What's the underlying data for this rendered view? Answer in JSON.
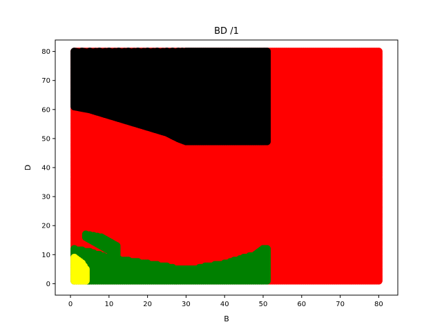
{
  "chart_data": {
    "type": "scatter",
    "title": "BD /1",
    "xlabel": "B",
    "ylabel": "D",
    "xlim": [
      -3.95,
      84.95
    ],
    "ylim": [
      -3.95,
      83.95
    ],
    "xticks": [
      0,
      10,
      20,
      30,
      40,
      50,
      60,
      70,
      80
    ],
    "yticks": [
      0,
      10,
      20,
      30,
      40,
      50,
      60,
      70,
      80
    ],
    "grid": false,
    "legend": "none",
    "marker_step": 0.5,
    "series": [
      {
        "color": "#ff0000",
        "regions": [
          {
            "x": [
              1,
              80
            ],
            "y": [
              1,
              80
            ]
          }
        ]
      },
      {
        "color": "#000000",
        "regions": [
          {
            "x": [
              1,
              51
            ],
            "y_min_boundary": [
              [
                1,
                61
              ],
              [
                5,
                60
              ],
              [
                10,
                58
              ],
              [
                15,
                56
              ],
              [
                20,
                54
              ],
              [
                25,
                52
              ],
              [
                28,
                50
              ],
              [
                30,
                49
              ],
              [
                51,
                49
              ]
            ],
            "y_max": 80
          }
        ]
      },
      {
        "color": "#008000",
        "regions": [
          {
            "x": [
              1,
              51
            ],
            "y_min": 1,
            "y_max_boundary": [
              [
                1,
                12
              ],
              [
                5,
                11
              ],
              [
                10,
                9
              ],
              [
                15,
                8
              ],
              [
                20,
                7
              ],
              [
                25,
                6
              ],
              [
                28,
                5
              ],
              [
                32,
                5
              ],
              [
                35,
                6
              ],
              [
                40,
                7
              ],
              [
                45,
                9
              ],
              [
                48,
                10
              ],
              [
                50,
                12
              ],
              [
                51,
                12
              ]
            ]
          },
          {
            "x": [
              4,
              12
            ],
            "y_max_boundary": [
              [
                4,
                17
              ],
              [
                8,
                16
              ],
              [
                12,
                13
              ]
            ],
            "y_min_boundary": [
              [
                4,
                16
              ],
              [
                8,
                13
              ],
              [
                12,
                10
              ]
            ]
          }
        ]
      },
      {
        "color": "#ffff00",
        "regions": [
          {
            "x": [
              1,
              4
            ],
            "y_min": 1,
            "y_max_boundary": [
              [
                1,
                9
              ],
              [
                2,
                8
              ],
              [
                3,
                7
              ],
              [
                4,
                5
              ]
            ]
          }
        ]
      }
    ]
  }
}
